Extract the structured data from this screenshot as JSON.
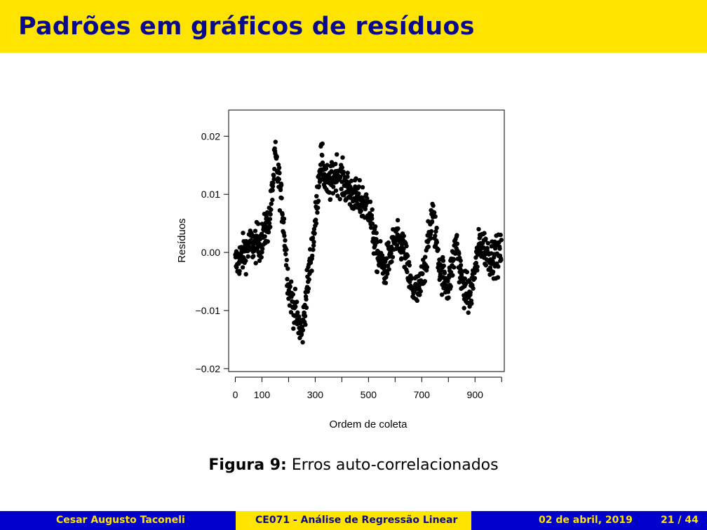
{
  "slide": {
    "title": "Padrões em gráficos de resíduos"
  },
  "chart_data": {
    "type": "scatter",
    "xlabel": "Ordem de coleta",
    "ylabel": "Resíduos",
    "xlim": [
      -25,
      1010
    ],
    "ylim": [
      -0.0205,
      0.0245
    ],
    "x_tick_marks": [
      0,
      100,
      200,
      300,
      400,
      500,
      600,
      700,
      800,
      900,
      1000
    ],
    "x_tick_labels": [
      {
        "x": 0,
        "label": "0"
      },
      {
        "x": 100,
        "label": "100"
      },
      {
        "x": 300,
        "label": "300"
      },
      {
        "x": 500,
        "label": "500"
      },
      {
        "x": 700,
        "label": "700"
      },
      {
        "x": 900,
        "label": "900"
      }
    ],
    "y_ticks": [
      -0.02,
      -0.01,
      0.0,
      0.01,
      0.02
    ],
    "y_tick_labels": [
      "−0.02",
      "−0.01",
      "0.00",
      "0.01",
      "0.02"
    ],
    "grid": false,
    "n_points": 1000,
    "marker_color": "#000000",
    "trend_curve": {
      "description": "Visible local centre of the residual cloud by observation order",
      "x": [
        0,
        50,
        100,
        130,
        150,
        165,
        180,
        200,
        230,
        250,
        270,
        300,
        320,
        350,
        380,
        420,
        460,
        500,
        530,
        560,
        600,
        630,
        660,
        690,
        720,
        740,
        770,
        800,
        830,
        850,
        880,
        920,
        960,
        1000
      ],
      "y": [
        -0.002,
        0.001,
        0.002,
        0.006,
        0.0165,
        0.012,
        0.006,
        -0.006,
        -0.011,
        -0.014,
        -0.006,
        0.005,
        0.016,
        0.011,
        0.014,
        0.011,
        0.009,
        0.008,
        0.0,
        -0.003,
        0.002,
        0.001,
        -0.006,
        -0.007,
        0.0,
        0.007,
        -0.003,
        -0.006,
        0.002,
        -0.005,
        -0.008,
        0.002,
        -0.001,
        0.0
      ]
    },
    "points_shown": "1000 residuals scattered around the trend curve with spread of about ±0.003"
  },
  "caption": {
    "label": "Figura 9:",
    "text": "Erros auto-correlacionados"
  },
  "footer": {
    "author": "Cesar Augusto Taconeli",
    "course": "CE071 - Análise de Regressão Linear",
    "date": "02 de abril, 2019",
    "page": "21 / 44"
  },
  "colors": {
    "header_bg": "#ffe400",
    "title": "#0a0a8c",
    "footer_blue": "#0000cd",
    "footer_yellow": "#ffe400"
  }
}
